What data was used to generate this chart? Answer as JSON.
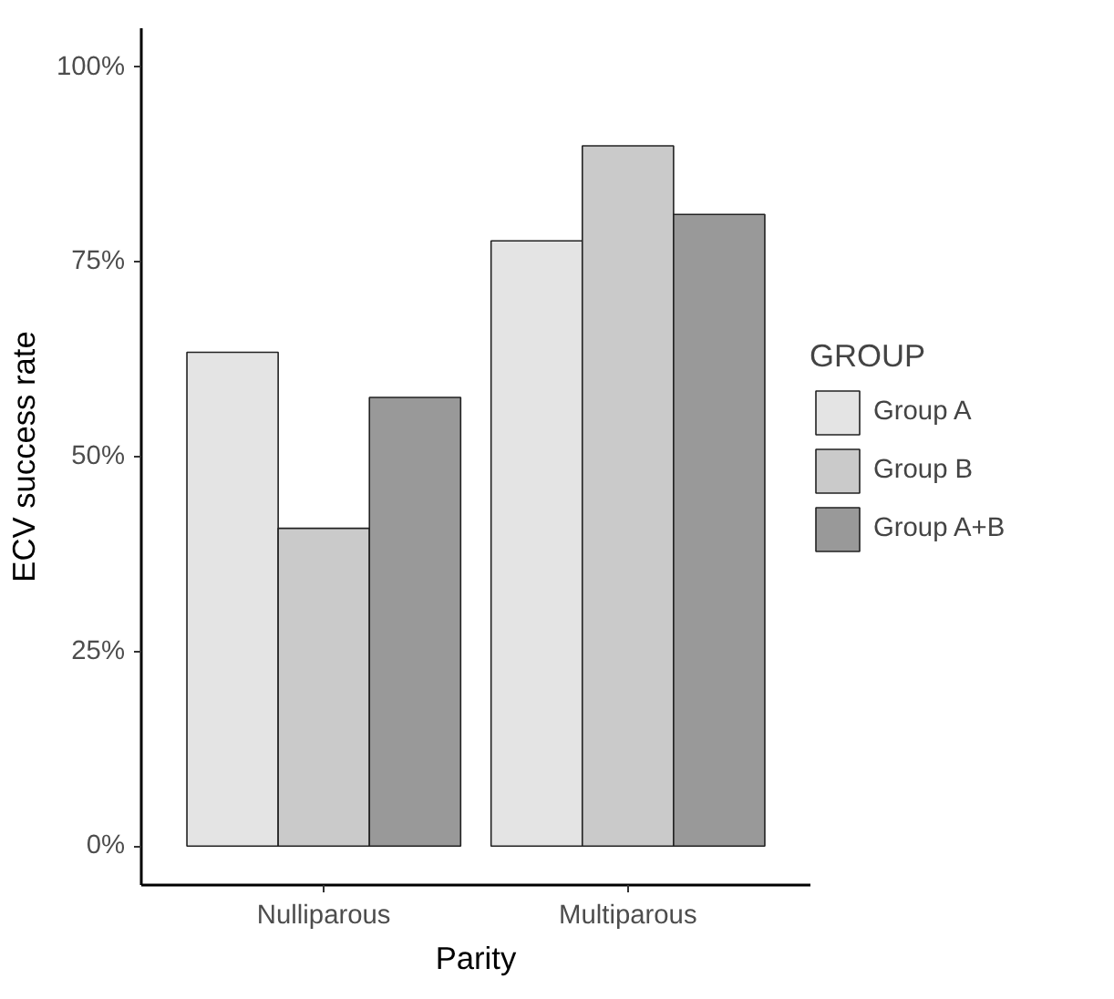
{
  "chart_data": {
    "type": "bar",
    "xlabel": "Parity",
    "ylabel": "ECV success rate",
    "legend_title": "GROUP",
    "categories": [
      "Nulliparous",
      "Multiparous"
    ],
    "series": [
      {
        "name": "Group A",
        "color": "#e4e4e4",
        "values": [
          63.4,
          77.7
        ]
      },
      {
        "name": "Group B",
        "color": "#cacaca",
        "values": [
          40.8,
          89.9
        ]
      },
      {
        "name": "Group A+B",
        "color": "#999999",
        "values": [
          57.6,
          81.1
        ]
      }
    ],
    "ylim": [
      -5,
      105
    ],
    "yticks": [
      {
        "value": 0,
        "label": "0%"
      },
      {
        "value": 25,
        "label": "25%"
      },
      {
        "value": 50,
        "label": "50%"
      },
      {
        "value": 75,
        "label": "75%"
      },
      {
        "value": 100,
        "label": "100%"
      }
    ],
    "legend": "right"
  }
}
